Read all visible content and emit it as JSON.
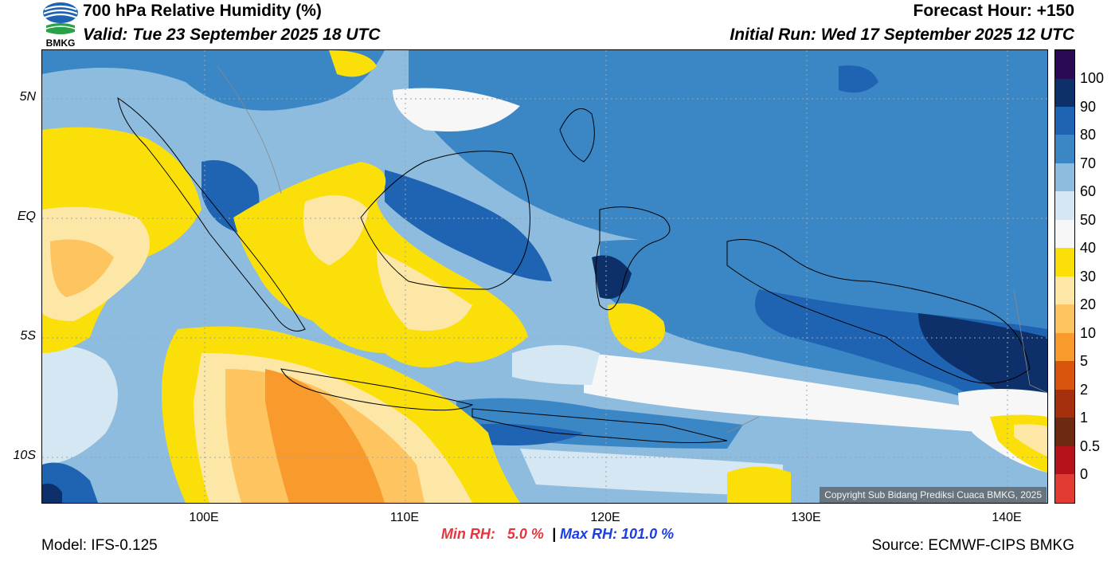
{
  "header": {
    "title": "700 hPa Relative Humidity (%)",
    "forecast_hour": "Forecast Hour: +150",
    "valid": "Valid: Tue 23 September 2025 18 UTC",
    "initial_run": "Initial Run: Wed 17 September 2025 12 UTC"
  },
  "logo": {
    "text": "BMKG",
    "icon": "bmkg-logo-icon",
    "color": "#1f63b3",
    "accent": "#2aa048"
  },
  "map": {
    "lat_labels": [
      "5N",
      "EQ",
      "5S",
      "10S"
    ],
    "lon_labels": [
      "100E",
      "110E",
      "120E",
      "130E",
      "140E"
    ],
    "copyright": "Copyright Sub Bidang Prediksi Cuaca BMKG, 2025"
  },
  "colorbar": {
    "labels": [
      "100",
      "90",
      "80",
      "70",
      "60",
      "50",
      "40",
      "30",
      "20",
      "10",
      "5",
      "2",
      "1",
      "0.5",
      "0"
    ],
    "colors": [
      "#2a0a52",
      "#0d2f6a",
      "#1f63b3",
      "#3b87c6",
      "#8dbcdf",
      "#d5e7f3",
      "#f7f7f7",
      "#fbdf08",
      "#fde7a6",
      "#fdc45f",
      "#f99a2d",
      "#d9550e",
      "#a5300e",
      "#6e2a10",
      "#b5121b",
      "#e23b34"
    ]
  },
  "stats": {
    "min_label": "Min RH:",
    "min_value": "5.0 %",
    "separator": "|",
    "max_label": "Max RH:",
    "max_value": "101.0 %"
  },
  "footer": {
    "model": "Model: IFS-0.125",
    "source": "Source: ECMWF-CIPS BMKG"
  }
}
